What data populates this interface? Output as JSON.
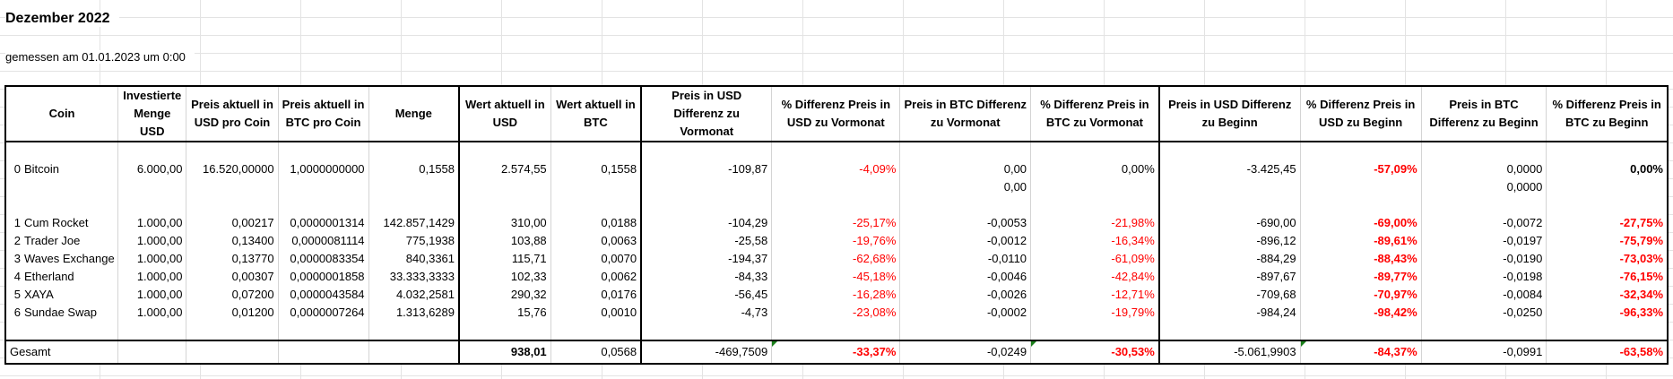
{
  "title": "Dezember 2022",
  "measured": "gemessen am 01.01.2023 um 0:00",
  "headers": [
    "Coin",
    "Investierte Menge USD",
    "Preis aktuell in USD pro Coin",
    "Preis aktuell in BTC pro Coin",
    "Menge",
    "Wert aktuell in USD",
    "Wert aktuell in BTC",
    "Preis in USD Differenz zu Vormonat",
    "% Differenz Preis in USD zu Vormonat",
    "Preis in BTC Differenz zu Vormonat",
    "% Differenz Preis in BTC zu Vormonat",
    "Preis in USD Differenz zu Beginn",
    "% Differenz Preis in USD zu Beginn",
    "Preis in BTC Differenz zu Beginn",
    "% Differenz Preis in BTC zu Beginn"
  ],
  "bitcoin": {
    "idx": "0",
    "coin": "Bitcoin",
    "cells": [
      "6.000,00",
      "16.520,00000",
      "1,0000000000",
      "0,1558",
      "2.574,55",
      "0,1558",
      "-109,87",
      "-4,09%",
      "0,00",
      "0,00%",
      "-3.425,45",
      "-57,09%",
      "0,0000",
      "0,00%"
    ],
    "extra_btc_diff_prev": "0,00",
    "extra_btc_diff_start": "0,0000"
  },
  "rows": [
    {
      "idx": "1",
      "coin": "Cum Rocket",
      "cells": [
        "1.000,00",
        "0,00217",
        "0,0000001314",
        "142.857,1429",
        "310,00",
        "0,0188",
        "-104,29",
        "-25,17%",
        "-0,0053",
        "-21,98%",
        "-690,00",
        "-69,00%",
        "-0,0072",
        "-27,75%"
      ]
    },
    {
      "idx": "2",
      "coin": "Trader Joe",
      "cells": [
        "1.000,00",
        "0,13400",
        "0,0000081114",
        "775,1938",
        "103,88",
        "0,0063",
        "-25,58",
        "-19,76%",
        "-0,0012",
        "-16,34%",
        "-896,12",
        "-89,61%",
        "-0,0197",
        "-75,79%"
      ]
    },
    {
      "idx": "3",
      "coin": "Waves Exchange",
      "cells": [
        "1.000,00",
        "0,13770",
        "0,0000083354",
        "840,3361",
        "115,71",
        "0,0070",
        "-194,37",
        "-62,68%",
        "-0,0110",
        "-61,09%",
        "-884,29",
        "-88,43%",
        "-0,0190",
        "-73,03%"
      ]
    },
    {
      "idx": "4",
      "coin": "Etherland",
      "cells": [
        "1.000,00",
        "0,00307",
        "0,0000001858",
        "33.333,3333",
        "102,33",
        "0,0062",
        "-84,33",
        "-45,18%",
        "-0,0046",
        "-42,84%",
        "-897,67",
        "-89,77%",
        "-0,0198",
        "-76,15%"
      ]
    },
    {
      "idx": "5",
      "coin": "XAYA",
      "cells": [
        "1.000,00",
        "0,07200",
        "0,0000043584",
        "4.032,2581",
        "290,32",
        "0,0176",
        "-56,45",
        "-16,28%",
        "-0,0026",
        "-12,71%",
        "-709,68",
        "-70,97%",
        "-0,0084",
        "-32,34%"
      ]
    },
    {
      "idx": "6",
      "coin": "Sundae Swap",
      "cells": [
        "1.000,00",
        "0,01200",
        "0,0000007264",
        "1.313,6289",
        "15,76",
        "0,0010",
        "-4,73",
        "-23,08%",
        "-0,0002",
        "-19,79%",
        "-984,24",
        "-98,42%",
        "-0,0250",
        "-96,33%"
      ]
    }
  ],
  "total": {
    "label": "Gesamt",
    "wert_usd": "938,01",
    "wert_btc": "0,0568",
    "usd_diff_prev": "-469,7509",
    "pct_usd_prev": "-33,37%",
    "btc_diff_prev": "-0,0249",
    "pct_btc_prev": "-30,53%",
    "usd_diff_start": "-5.061,9903",
    "pct_usd_start": "-84,37%",
    "btc_diff_start": "-0,0991",
    "pct_btc_start": "-63,58%"
  },
  "colors": {
    "negative_percent": "#ff0000",
    "error_indicator": "#1a7f1a"
  }
}
